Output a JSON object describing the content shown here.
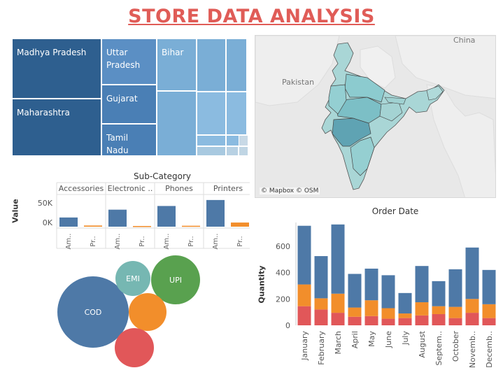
{
  "title": "STORE DATA ANALYSIS",
  "colors": {
    "title": "#e05c57",
    "blue": "#4e79a7",
    "orange": "#f28e2b",
    "red": "#e15759",
    "teal": "#76b7b2",
    "green": "#59a14f"
  },
  "treemap": {
    "tiles": [
      {
        "label": "Madhya Pradesh",
        "color": "#2e5f8f"
      },
      {
        "label": "Maharashtra",
        "color": "#2e5f8f"
      },
      {
        "label": "Uttar Pradesh",
        "color": "#5b8fc4"
      },
      {
        "label": "Gujarat",
        "color": "#4a7fb5"
      },
      {
        "label": "Tamil Nadu",
        "color": "#4a7fb5"
      },
      {
        "label": "Bihar",
        "color": "#7aaed6"
      },
      {
        "label": "",
        "color": "#7aaed6"
      },
      {
        "label": "",
        "color": "#7aaed6"
      },
      {
        "label": "",
        "color": "#7aaed6"
      },
      {
        "label": "",
        "color": "#8bbbe0"
      },
      {
        "label": "",
        "color": "#8bbbe0"
      },
      {
        "label": "",
        "color": "#8bbbe0"
      },
      {
        "label": "",
        "color": "#8bbbe0"
      },
      {
        "label": "",
        "color": "#a8c9e0"
      },
      {
        "label": "",
        "color": "#b8d1e3"
      },
      {
        "label": "",
        "color": "#c0d5e4"
      },
      {
        "label": "",
        "color": "#c8d9e6"
      },
      {
        "label": "",
        "color": "#d0dde8"
      }
    ]
  },
  "map": {
    "labels": {
      "china": "China",
      "pakistan": "Pakistan"
    },
    "credit": "© Mapbox © OSM"
  },
  "subcategory_chart": {
    "title": "Sub-Category",
    "ylabel": "Value",
    "yticks": [
      "50K",
      "0K"
    ],
    "panels": [
      {
        "header": "Accessories",
        "bars": [
          {
            "label": "Am..",
            "value": 20000
          },
          {
            "label": "Pr..",
            "value": 2500
          }
        ]
      },
      {
        "header": "Electronic ..",
        "bars": [
          {
            "label": "Am..",
            "value": 37000
          },
          {
            "label": "Pr..",
            "value": 1500
          }
        ]
      },
      {
        "header": "Phones",
        "bars": [
          {
            "label": "Am..",
            "value": 45000
          },
          {
            "label": "Pr..",
            "value": 2000
          }
        ]
      },
      {
        "header": "Printers",
        "bars": [
          {
            "label": "Am..",
            "value": 58000
          },
          {
            "label": "Pr..",
            "value": 9000
          }
        ]
      }
    ]
  },
  "payment_bubbles": [
    {
      "label": "COD",
      "color": "#4e79a7"
    },
    {
      "label": "EMI",
      "color": "#76b7b2"
    },
    {
      "label": "UPI",
      "color": "#59a14f"
    },
    {
      "label": "",
      "color": "#f28e2b"
    },
    {
      "label": "",
      "color": "#e15759"
    }
  ],
  "chart_data": {
    "type": "bar",
    "title": "Order Date",
    "xlabel": "",
    "ylabel": "Quantity",
    "ylim": [
      0,
      780
    ],
    "yticks": [
      0,
      200,
      400,
      600
    ],
    "categories": [
      "January",
      "February",
      "March",
      "April",
      "May",
      "June",
      "July",
      "August",
      "Septem..",
      "October",
      "Novemb..",
      "Decemb.."
    ],
    "series": [
      {
        "color": "#e15759",
        "values": [
          145,
          120,
          95,
          65,
          70,
          50,
          55,
          75,
          85,
          55,
          95,
          55
        ]
      },
      {
        "color": "#f28e2b",
        "values": [
          165,
          85,
          145,
          70,
          120,
          80,
          35,
          100,
          60,
          85,
          105,
          105
        ]
      },
      {
        "color": "#4e79a7",
        "values": [
          445,
          320,
          525,
          255,
          240,
          250,
          155,
          275,
          190,
          285,
          390,
          260
        ]
      }
    ]
  }
}
